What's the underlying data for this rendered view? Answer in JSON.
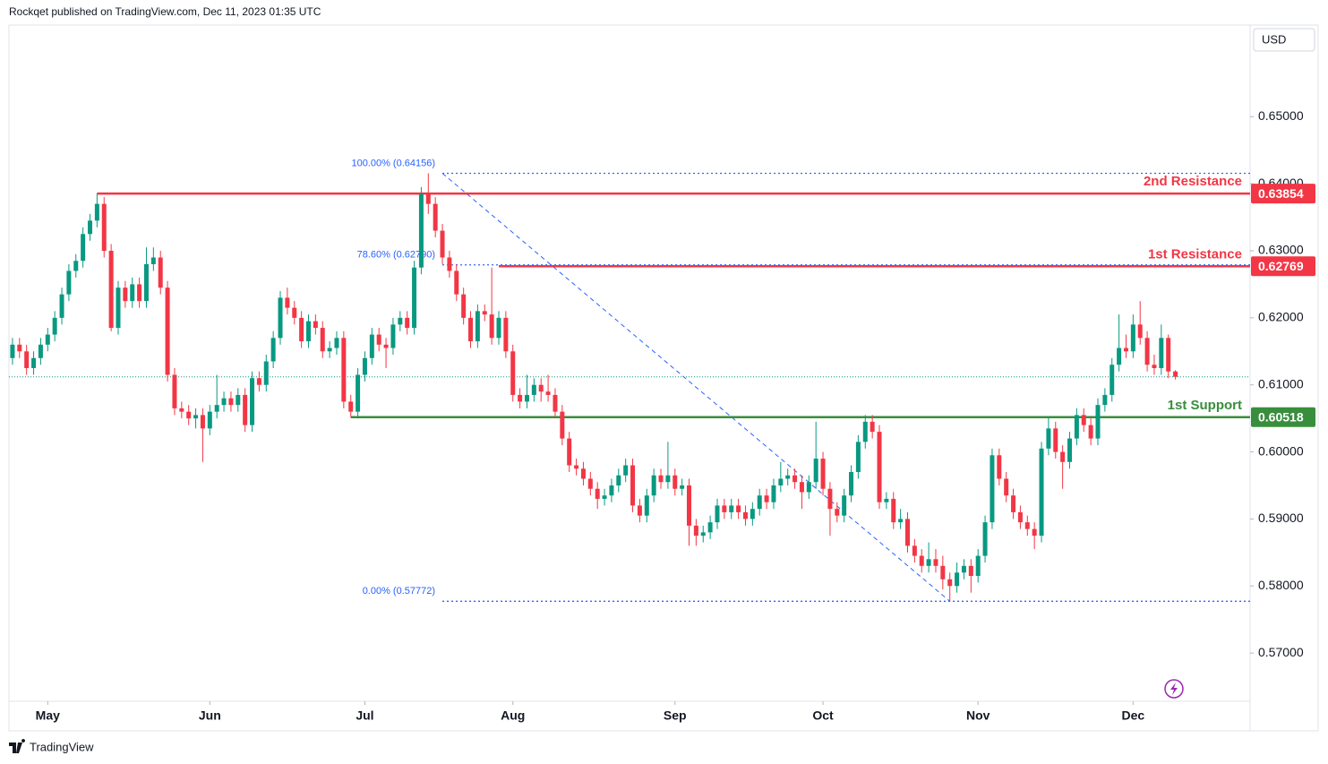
{
  "header": "Rockqet published on TradingView.com, Dec 11, 2023 01:35 UTC",
  "currency": "USD",
  "footer": "TradingView",
  "chart_data": {
    "type": "candlestick",
    "up_color": "#089981",
    "down_color": "#f23645",
    "xlim": [
      -0.5,
      175.6
    ],
    "ylim": [
      0.5628,
      0.6634
    ],
    "xticks": [
      {
        "value": 5,
        "label": "May"
      },
      {
        "value": 28,
        "label": "Jun"
      },
      {
        "value": 50,
        "label": "Jul"
      },
      {
        "value": 71,
        "label": "Aug"
      },
      {
        "value": 94,
        "label": "Sep"
      },
      {
        "value": 115,
        "label": "Oct"
      },
      {
        "value": 137,
        "label": "Nov"
      },
      {
        "value": 159,
        "label": "Dec"
      }
    ],
    "yticks": [
      {
        "value": 0.57,
        "label": "0.57000"
      },
      {
        "value": 0.58,
        "label": "0.58000"
      },
      {
        "value": 0.59,
        "label": "0.59000"
      },
      {
        "value": 0.6,
        "label": "0.60000"
      },
      {
        "value": 0.61,
        "label": "0.61000"
      },
      {
        "value": 0.62,
        "label": "0.62000"
      },
      {
        "value": 0.63,
        "label": "0.63000"
      },
      {
        "value": 0.64,
        "label": "0.64000"
      },
      {
        "value": 0.65,
        "label": "0.65000"
      }
    ],
    "levels": [
      {
        "name": "2nd Resistance",
        "value": 0.63854,
        "color": "#f23645",
        "start": 12
      },
      {
        "name": "1st Resistance",
        "value": 0.62769,
        "color": "#f23645",
        "start": 69
      },
      {
        "name": "1st Support",
        "value": 0.60518,
        "color": "#388e3c",
        "start": 48
      }
    ],
    "fib": {
      "color": "#2962ff",
      "start": 61,
      "end": 133,
      "levels": [
        {
          "label": "100.00% (0.64156)",
          "value": 0.64156
        },
        {
          "label": "78.60% (0.62790)",
          "value": 0.6279
        },
        {
          "label": "0.00% (0.57772)",
          "value": 0.57772
        }
      ]
    },
    "last_price_color": "#089981",
    "candles": [
      [
        0.614,
        0.617,
        0.613,
        0.616
      ],
      [
        0.616,
        0.617,
        0.614,
        0.615
      ],
      [
        0.615,
        0.616,
        0.6115,
        0.6125
      ],
      [
        0.6125,
        0.615,
        0.6115,
        0.614
      ],
      [
        0.614,
        0.617,
        0.613,
        0.616
      ],
      [
        0.616,
        0.6185,
        0.615,
        0.6175
      ],
      [
        0.6175,
        0.621,
        0.6165,
        0.62
      ],
      [
        0.62,
        0.6245,
        0.619,
        0.6235
      ],
      [
        0.6235,
        0.628,
        0.6225,
        0.627
      ],
      [
        0.627,
        0.6295,
        0.626,
        0.6285
      ],
      [
        0.6285,
        0.6335,
        0.6275,
        0.6325
      ],
      [
        0.6325,
        0.6355,
        0.6315,
        0.6345
      ],
      [
        0.6345,
        0.63854,
        0.6335,
        0.637
      ],
      [
        0.637,
        0.638,
        0.629,
        0.63
      ],
      [
        0.63,
        0.631,
        0.618,
        0.6185
      ],
      [
        0.6185,
        0.6255,
        0.6175,
        0.6245
      ],
      [
        0.6245,
        0.6255,
        0.6215,
        0.6225
      ],
      [
        0.6225,
        0.626,
        0.6215,
        0.625
      ],
      [
        0.625,
        0.626,
        0.6215,
        0.6225
      ],
      [
        0.6225,
        0.6305,
        0.6215,
        0.628
      ],
      [
        0.628,
        0.6305,
        0.627,
        0.629
      ],
      [
        0.629,
        0.63,
        0.6235,
        0.6245
      ],
      [
        0.6245,
        0.6255,
        0.6105,
        0.6115
      ],
      [
        0.6115,
        0.6125,
        0.6055,
        0.6065
      ],
      [
        0.6065,
        0.6075,
        0.605,
        0.606
      ],
      [
        0.606,
        0.607,
        0.604,
        0.605
      ],
      [
        0.605,
        0.6065,
        0.6035,
        0.6055
      ],
      [
        0.6055,
        0.6065,
        0.5985,
        0.6035
      ],
      [
        0.6035,
        0.607,
        0.6025,
        0.606
      ],
      [
        0.606,
        0.6115,
        0.605,
        0.607
      ],
      [
        0.607,
        0.609,
        0.606,
        0.608
      ],
      [
        0.608,
        0.609,
        0.606,
        0.607
      ],
      [
        0.607,
        0.6095,
        0.606,
        0.6085
      ],
      [
        0.6085,
        0.6095,
        0.603,
        0.604
      ],
      [
        0.604,
        0.612,
        0.603,
        0.611
      ],
      [
        0.611,
        0.612,
        0.609,
        0.61
      ],
      [
        0.61,
        0.6145,
        0.609,
        0.6135
      ],
      [
        0.6135,
        0.618,
        0.6125,
        0.617
      ],
      [
        0.617,
        0.624,
        0.616,
        0.623
      ],
      [
        0.623,
        0.6245,
        0.6205,
        0.6215
      ],
      [
        0.6215,
        0.6225,
        0.619,
        0.62
      ],
      [
        0.62,
        0.621,
        0.6155,
        0.6165
      ],
      [
        0.6165,
        0.6205,
        0.6155,
        0.6195
      ],
      [
        0.6195,
        0.6205,
        0.6175,
        0.6185
      ],
      [
        0.6185,
        0.6195,
        0.614,
        0.615
      ],
      [
        0.615,
        0.6165,
        0.614,
        0.6155
      ],
      [
        0.6155,
        0.618,
        0.6145,
        0.617
      ],
      [
        0.617,
        0.618,
        0.6065,
        0.6075
      ],
      [
        0.6075,
        0.6085,
        0.60518,
        0.606
      ],
      [
        0.606,
        0.6125,
        0.605,
        0.6115
      ],
      [
        0.6115,
        0.615,
        0.6105,
        0.614
      ],
      [
        0.614,
        0.6185,
        0.613,
        0.6175
      ],
      [
        0.6175,
        0.6185,
        0.615,
        0.616
      ],
      [
        0.616,
        0.617,
        0.6125,
        0.6155
      ],
      [
        0.6155,
        0.62,
        0.6145,
        0.619
      ],
      [
        0.619,
        0.621,
        0.618,
        0.62
      ],
      [
        0.62,
        0.621,
        0.6175,
        0.6185
      ],
      [
        0.6185,
        0.6285,
        0.6175,
        0.6275
      ],
      [
        0.6275,
        0.6395,
        0.6265,
        0.6385
      ],
      [
        0.6385,
        0.64156,
        0.6355,
        0.637
      ],
      [
        0.637,
        0.638,
        0.632,
        0.633
      ],
      [
        0.633,
        0.634,
        0.628,
        0.629
      ],
      [
        0.629,
        0.63,
        0.626,
        0.627
      ],
      [
        0.627,
        0.628,
        0.6225,
        0.6235
      ],
      [
        0.6235,
        0.6245,
        0.619,
        0.62
      ],
      [
        0.62,
        0.621,
        0.6155,
        0.6165
      ],
      [
        0.6165,
        0.622,
        0.6155,
        0.621
      ],
      [
        0.621,
        0.622,
        0.6195,
        0.6205
      ],
      [
        0.6205,
        0.6275,
        0.616,
        0.617
      ],
      [
        0.617,
        0.621,
        0.616,
        0.62
      ],
      [
        0.62,
        0.621,
        0.614,
        0.615
      ],
      [
        0.615,
        0.616,
        0.6075,
        0.6085
      ],
      [
        0.6085,
        0.6095,
        0.6065,
        0.6075
      ],
      [
        0.6075,
        0.6115,
        0.6065,
        0.6085
      ],
      [
        0.6085,
        0.611,
        0.6075,
        0.61
      ],
      [
        0.61,
        0.611,
        0.6075,
        0.609
      ],
      [
        0.609,
        0.6115,
        0.6075,
        0.6085
      ],
      [
        0.6085,
        0.6095,
        0.605,
        0.606
      ],
      [
        0.606,
        0.607,
        0.601,
        0.602
      ],
      [
        0.602,
        0.603,
        0.597,
        0.598
      ],
      [
        0.598,
        0.599,
        0.5965,
        0.5975
      ],
      [
        0.5975,
        0.5985,
        0.595,
        0.596
      ],
      [
        0.596,
        0.597,
        0.5935,
        0.5945
      ],
      [
        0.5945,
        0.5955,
        0.5915,
        0.593
      ],
      [
        0.593,
        0.5945,
        0.592,
        0.5935
      ],
      [
        0.5935,
        0.596,
        0.5925,
        0.595
      ],
      [
        0.595,
        0.5975,
        0.594,
        0.5965
      ],
      [
        0.5965,
        0.599,
        0.5955,
        0.598
      ],
      [
        0.598,
        0.599,
        0.591,
        0.592
      ],
      [
        0.592,
        0.593,
        0.5895,
        0.5905
      ],
      [
        0.5905,
        0.5945,
        0.5895,
        0.5935
      ],
      [
        0.5935,
        0.5975,
        0.5925,
        0.5965
      ],
      [
        0.5965,
        0.5975,
        0.5945,
        0.5955
      ],
      [
        0.5955,
        0.6015,
        0.5945,
        0.5965
      ],
      [
        0.5965,
        0.5975,
        0.5935,
        0.5945
      ],
      [
        0.5945,
        0.596,
        0.5935,
        0.595
      ],
      [
        0.595,
        0.596,
        0.586,
        0.589
      ],
      [
        0.589,
        0.59,
        0.586,
        0.5875
      ],
      [
        0.5875,
        0.589,
        0.5865,
        0.588
      ],
      [
        0.588,
        0.5905,
        0.587,
        0.5895
      ],
      [
        0.5895,
        0.593,
        0.5885,
        0.592
      ],
      [
        0.592,
        0.593,
        0.59,
        0.591
      ],
      [
        0.591,
        0.593,
        0.59,
        0.592
      ],
      [
        0.592,
        0.593,
        0.59,
        0.591
      ],
      [
        0.591,
        0.592,
        0.589,
        0.59
      ],
      [
        0.59,
        0.5925,
        0.589,
        0.5915
      ],
      [
        0.5915,
        0.5945,
        0.5905,
        0.5935
      ],
      [
        0.5935,
        0.5945,
        0.5915,
        0.5925
      ],
      [
        0.5925,
        0.596,
        0.5915,
        0.595
      ],
      [
        0.595,
        0.5985,
        0.594,
        0.596
      ],
      [
        0.596,
        0.5975,
        0.595,
        0.5965
      ],
      [
        0.5965,
        0.5975,
        0.5945,
        0.5955
      ],
      [
        0.5955,
        0.5965,
        0.5915,
        0.594
      ],
      [
        0.594,
        0.5965,
        0.593,
        0.5955
      ],
      [
        0.5955,
        0.6045,
        0.5945,
        0.599
      ],
      [
        0.599,
        0.6,
        0.5935,
        0.5945
      ],
      [
        0.5945,
        0.5955,
        0.5875,
        0.5915
      ],
      [
        0.5915,
        0.5925,
        0.5895,
        0.5905
      ],
      [
        0.5905,
        0.5945,
        0.5895,
        0.5935
      ],
      [
        0.5935,
        0.598,
        0.5925,
        0.597
      ],
      [
        0.597,
        0.6025,
        0.596,
        0.6015
      ],
      [
        0.6015,
        0.6055,
        0.6005,
        0.6045
      ],
      [
        0.6045,
        0.6055,
        0.602,
        0.603
      ],
      [
        0.603,
        0.604,
        0.5915,
        0.5925
      ],
      [
        0.5925,
        0.594,
        0.5915,
        0.593
      ],
      [
        0.593,
        0.594,
        0.5885,
        0.5895
      ],
      [
        0.5895,
        0.5915,
        0.5885,
        0.59
      ],
      [
        0.59,
        0.591,
        0.585,
        0.586
      ],
      [
        0.586,
        0.587,
        0.5835,
        0.5845
      ],
      [
        0.5845,
        0.5855,
        0.582,
        0.583
      ],
      [
        0.583,
        0.5865,
        0.582,
        0.584
      ],
      [
        0.584,
        0.5855,
        0.582,
        0.583
      ],
      [
        0.583,
        0.5845,
        0.5795,
        0.581
      ],
      [
        0.581,
        0.582,
        0.57772,
        0.58
      ],
      [
        0.58,
        0.5835,
        0.579,
        0.582
      ],
      [
        0.582,
        0.584,
        0.581,
        0.583
      ],
      [
        0.583,
        0.584,
        0.579,
        0.5815
      ],
      [
        0.5815,
        0.5855,
        0.5805,
        0.5845
      ],
      [
        0.5845,
        0.5905,
        0.5835,
        0.5895
      ],
      [
        0.5895,
        0.6005,
        0.5885,
        0.5995
      ],
      [
        0.5995,
        0.6005,
        0.595,
        0.596
      ],
      [
        0.596,
        0.597,
        0.5925,
        0.5935
      ],
      [
        0.5935,
        0.5945,
        0.59,
        0.591
      ],
      [
        0.591,
        0.592,
        0.5885,
        0.5895
      ],
      [
        0.5895,
        0.5905,
        0.5875,
        0.5885
      ],
      [
        0.5885,
        0.5895,
        0.5855,
        0.5875
      ],
      [
        0.5875,
        0.6015,
        0.5865,
        0.6005
      ],
      [
        0.6005,
        0.6052,
        0.5995,
        0.6035
      ],
      [
        0.6035,
        0.6045,
        0.599,
        0.6
      ],
      [
        0.6,
        0.601,
        0.5945,
        0.5985
      ],
      [
        0.5985,
        0.603,
        0.5975,
        0.602
      ],
      [
        0.602,
        0.6065,
        0.601,
        0.6055
      ],
      [
        0.6055,
        0.6065,
        0.603,
        0.604
      ],
      [
        0.604,
        0.605,
        0.601,
        0.602
      ],
      [
        0.602,
        0.608,
        0.601,
        0.607
      ],
      [
        0.607,
        0.6095,
        0.606,
        0.6085
      ],
      [
        0.6085,
        0.614,
        0.6075,
        0.613
      ],
      [
        0.613,
        0.6205,
        0.612,
        0.6155
      ],
      [
        0.6155,
        0.6175,
        0.614,
        0.615
      ],
      [
        0.615,
        0.6205,
        0.614,
        0.619
      ],
      [
        0.619,
        0.6225,
        0.616,
        0.617
      ],
      [
        0.617,
        0.618,
        0.612,
        0.613
      ],
      [
        0.613,
        0.6145,
        0.6115,
        0.6125
      ],
      [
        0.6125,
        0.619,
        0.6115,
        0.617
      ],
      [
        0.617,
        0.6175,
        0.611,
        0.612
      ],
      [
        0.612,
        0.6122,
        0.6108,
        0.6112
      ]
    ]
  }
}
